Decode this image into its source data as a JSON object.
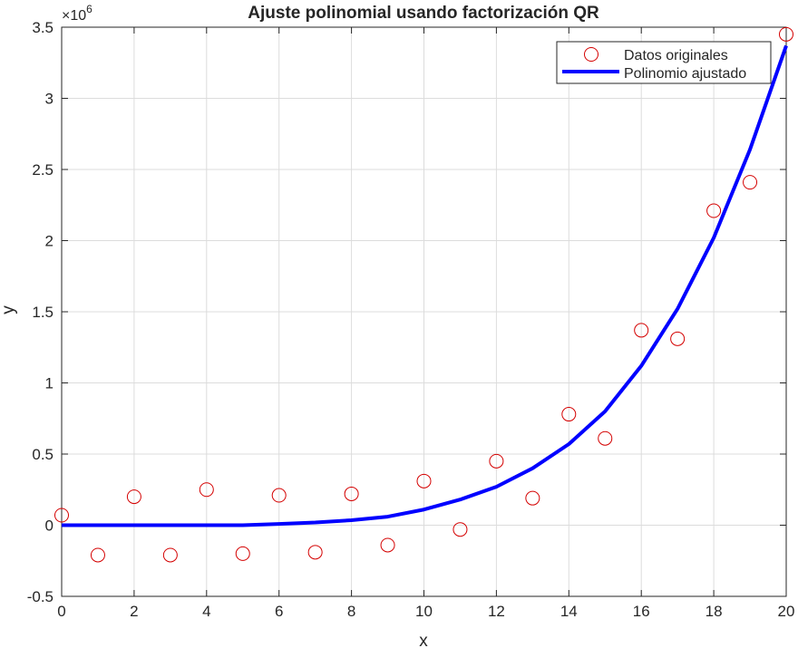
{
  "chart_data": {
    "type": "scatter",
    "title": "Ajuste polinomial usando factorización QR",
    "xlabel": "x",
    "ylabel": "y",
    "y_exponent_label": "×10",
    "y_exponent_power": "6",
    "xlim": [
      0,
      20
    ],
    "ylim": [
      -0.5,
      3.5
    ],
    "y_scale_note": "values in units of 10^6",
    "grid": true,
    "legend_position": "top-right",
    "x_ticks": [
      0,
      2,
      4,
      6,
      8,
      10,
      12,
      14,
      16,
      18,
      20
    ],
    "x_tick_labels": [
      "0",
      "2",
      "4",
      "6",
      "8",
      "10",
      "12",
      "14",
      "16",
      "18",
      "20"
    ],
    "y_ticks": [
      -0.5,
      0,
      0.5,
      1,
      1.5,
      2,
      2.5,
      3,
      3.5
    ],
    "y_tick_labels": [
      "-0.5",
      "0",
      "0.5",
      "1",
      "1.5",
      "2",
      "2.5",
      "3",
      "3.5"
    ],
    "series": [
      {
        "name": "Datos originales",
        "kind": "markers",
        "marker": "circle",
        "color": "#d40000",
        "x": [
          0,
          1,
          2,
          3,
          4,
          5,
          6,
          7,
          8,
          9,
          10,
          11,
          12,
          13,
          14,
          15,
          16,
          17,
          18,
          19,
          20
        ],
        "y": [
          0.07,
          -0.21,
          0.2,
          -0.21,
          0.25,
          -0.2,
          0.21,
          -0.19,
          0.22,
          -0.14,
          0.31,
          -0.03,
          0.45,
          0.19,
          0.78,
          0.61,
          1.37,
          1.31,
          2.21,
          2.41,
          3.45
        ]
      },
      {
        "name": "Polinomio ajustado",
        "kind": "line",
        "color": "#0000ff",
        "x": [
          0,
          1,
          2,
          3,
          4,
          5,
          6,
          7,
          8,
          9,
          10,
          11,
          12,
          13,
          14,
          15,
          16,
          17,
          18,
          19,
          20
        ],
        "y": [
          0.0,
          0.0,
          0.0,
          0.0,
          0.0,
          0.0,
          0.009,
          0.019,
          0.035,
          0.06,
          0.11,
          0.18,
          0.27,
          0.4,
          0.57,
          0.8,
          1.12,
          1.52,
          2.02,
          2.64,
          3.37
        ]
      }
    ]
  }
}
